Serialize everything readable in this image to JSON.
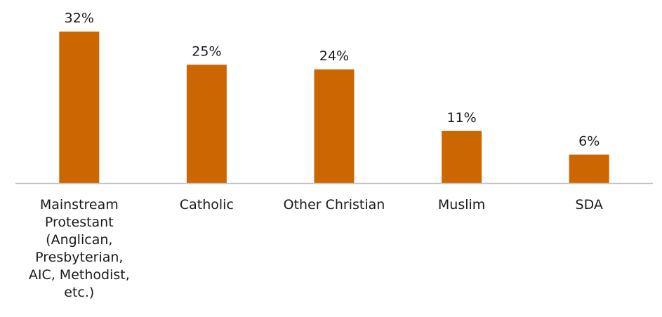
{
  "chart_data": {
    "type": "bar",
    "title": "",
    "xlabel": "",
    "ylabel": "",
    "ylim": [
      0,
      32
    ],
    "grid": false,
    "legend": "none",
    "bar_color": "#CC6600",
    "axis_color": "#BFBFBF",
    "categories": [
      "Mainstream Protestant (Anglican, Presbyterian, AIC, Methodist, etc.)",
      "Catholic",
      "Other Christian",
      "Muslim",
      "SDA"
    ],
    "category_lines": [
      [
        "Mainstream",
        "Protestant",
        "(Anglican,",
        "Presbyterian,",
        "AIC, Methodist,",
        "etc.)"
      ],
      [
        "Catholic"
      ],
      [
        "Other Christian"
      ],
      [
        "Muslim"
      ],
      [
        "SDA"
      ]
    ],
    "values": [
      32,
      25,
      24,
      11,
      6
    ],
    "data_labels": [
      "32%",
      "25%",
      "24%",
      "11%",
      "6%"
    ]
  }
}
